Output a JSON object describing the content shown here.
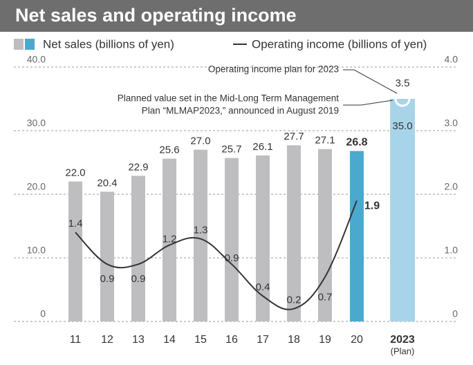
{
  "chart_data": {
    "type": "bar-line",
    "title": "Net sales and operating income",
    "categories": [
      "11",
      "12",
      "13",
      "14",
      "15",
      "16",
      "17",
      "18",
      "19",
      "20",
      "2023"
    ],
    "category_sublabel": "(Plan)",
    "series": [
      {
        "name": "Net sales (billions of yen)",
        "type": "bar",
        "colors": [
          "#bebec1",
          "#bebec1",
          "#bebec1",
          "#bebec1",
          "#bebec1",
          "#bebec1",
          "#bebec1",
          "#bebec1",
          "#bebec1",
          "#4ba8cf",
          "#a8d4e9"
        ],
        "values": [
          22.0,
          20.4,
          22.9,
          25.6,
          27.0,
          25.7,
          26.1,
          27.7,
          27.1,
          26.8,
          35.0
        ],
        "value_labels": [
          "22.0",
          "20.4",
          "22.9",
          "25.6",
          "27.0",
          "25.7",
          "26.1",
          "27.7",
          "27.1",
          "26.8",
          "35.0"
        ]
      },
      {
        "name": "Operating income (billions of yen)",
        "type": "line",
        "axis": "y2",
        "color": "#333333",
        "values": [
          1.4,
          0.9,
          0.9,
          1.2,
          1.3,
          0.9,
          0.4,
          0.2,
          0.7,
          1.9,
          3.5
        ]
      }
    ],
    "ylim": [
      0,
      40
    ],
    "yticks": [
      0,
      {
        "value": 10,
        "label": "10.0"
      },
      {
        "value": 20,
        "label": "20.0"
      },
      {
        "value": 30,
        "label": "30.0"
      },
      {
        "value": 40,
        "label": "40.0"
      }
    ],
    "y2lim": [
      0,
      4
    ],
    "y2ticks": [
      0,
      {
        "value": 1,
        "label": "1.0"
      },
      {
        "value": 2,
        "label": "2.0"
      },
      {
        "value": 3,
        "label": "3.0"
      },
      {
        "value": 4,
        "label": "4.0"
      }
    ],
    "grid": true,
    "annotations": [
      {
        "lines": [
          "Operating income plan for 2023"
        ]
      },
      {
        "lines": [
          "Planned value set in the Mid-Long Term Management",
          "Plan “MLMAP2023,” announced in August 2019"
        ]
      }
    ]
  }
}
